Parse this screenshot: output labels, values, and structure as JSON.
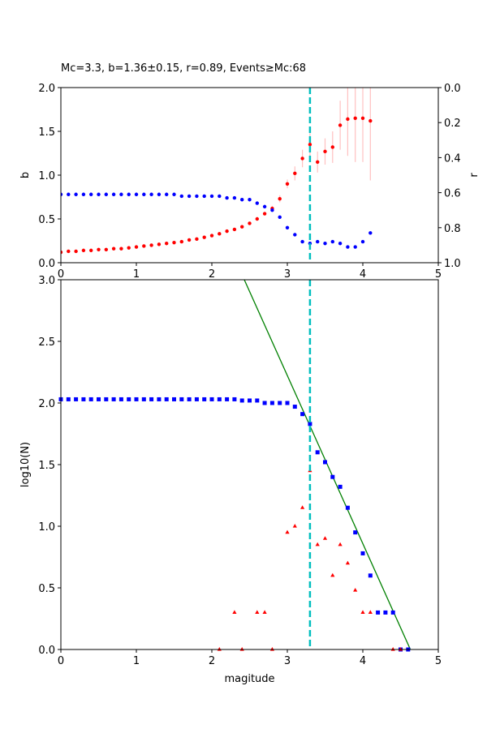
{
  "chart_data": [
    {
      "type": "scatter",
      "title": "Mc=3.3, b=1.36±0.15, r=0.89, Events≥Mc:68",
      "ylabel": "b",
      "y2label": "r",
      "xlim": [
        0,
        5
      ],
      "xticks": [
        0,
        1,
        2,
        3,
        4,
        5
      ],
      "ylim": [
        0,
        2
      ],
      "yticks": [
        {
          "value": 0,
          "label": "0.0"
        },
        {
          "value": 0.5,
          "label": "0.5"
        },
        {
          "value": 1,
          "label": "1.0"
        },
        {
          "value": 1.5,
          "label": "1.5"
        },
        {
          "value": 2,
          "label": "2.0"
        }
      ],
      "y2lim": [
        1,
        0
      ],
      "y2ticks": [
        {
          "value": 0,
          "label": "0.0"
        },
        {
          "value": 0.2,
          "label": "0.2"
        },
        {
          "value": 0.4,
          "label": "0.4"
        },
        {
          "value": 0.6,
          "label": "0.6"
        },
        {
          "value": 0.8,
          "label": "0.8"
        },
        {
          "value": 1,
          "label": "1.0"
        }
      ],
      "vline": {
        "x": 3.3,
        "color": "#00bfbf"
      },
      "x": [
        0,
        0.1,
        0.2,
        0.3,
        0.4,
        0.5,
        0.6,
        0.7,
        0.8,
        0.9,
        1.0,
        1.1,
        1.2,
        1.3,
        1.4,
        1.5,
        1.6,
        1.7,
        1.8,
        1.9,
        2.0,
        2.1,
        2.2,
        2.3,
        2.4,
        2.5,
        2.6,
        2.7,
        2.8,
        2.9,
        3.0,
        3.1,
        3.2,
        3.3,
        3.4,
        3.5,
        3.6,
        3.7,
        3.8,
        3.9,
        4.0,
        4.1
      ],
      "series": [
        {
          "color": "#ff0000",
          "marker": "circle",
          "error_color": "#ffc0c0",
          "values": [
            0.12,
            0.13,
            0.13,
            0.14,
            0.14,
            0.15,
            0.15,
            0.16,
            0.16,
            0.17,
            0.18,
            0.19,
            0.2,
            0.21,
            0.22,
            0.23,
            0.24,
            0.26,
            0.27,
            0.29,
            0.31,
            0.33,
            0.36,
            0.38,
            0.41,
            0.45,
            0.5,
            0.56,
            0.62,
            0.73,
            0.9,
            1.02,
            1.19,
            1.35,
            1.15,
            1.27,
            1.32,
            1.57,
            1.64,
            1.65,
            1.65,
            1.62
          ],
          "errors": [
            null,
            null,
            null,
            null,
            null,
            null,
            null,
            null,
            null,
            null,
            null,
            null,
            null,
            null,
            null,
            null,
            null,
            null,
            null,
            null,
            null,
            null,
            null,
            null,
            null,
            null,
            null,
            null,
            0.03,
            0.04,
            0.05,
            0.08,
            0.1,
            0.13,
            0.12,
            0.15,
            0.18,
            0.28,
            0.42,
            0.5,
            0.5,
            0.68
          ]
        },
        {
          "color": "#0000ff",
          "marker": "circle",
          "axis": "y2",
          "values": [
            0.61,
            0.61,
            0.61,
            0.61,
            0.61,
            0.61,
            0.61,
            0.61,
            0.61,
            0.61,
            0.61,
            0.61,
            0.61,
            0.61,
            0.61,
            0.61,
            0.62,
            0.62,
            0.62,
            0.62,
            0.62,
            0.62,
            0.63,
            0.63,
            0.64,
            0.64,
            0.66,
            0.68,
            0.7,
            0.74,
            0.8,
            0.84,
            0.88,
            0.89,
            0.88,
            0.89,
            0.88,
            0.89,
            0.91,
            0.91,
            0.88,
            0.83
          ]
        }
      ]
    },
    {
      "type": "scatter",
      "xlabel": "magitude",
      "ylabel": "log10(N)",
      "xlim": [
        0,
        5
      ],
      "xticks": [
        0,
        1,
        2,
        3,
        4,
        5
      ],
      "ylim": [
        0,
        3
      ],
      "yticks": [
        {
          "value": 0,
          "label": "0.0"
        },
        {
          "value": 0.5,
          "label": "0.5"
        },
        {
          "value": 1,
          "label": "1.0"
        },
        {
          "value": 1.5,
          "label": "1.5"
        },
        {
          "value": 2,
          "label": "2.0"
        },
        {
          "value": 2.5,
          "label": "2.5"
        },
        {
          "value": 3,
          "label": "3.0"
        }
      ],
      "vline": {
        "x": 3.3,
        "color": "#00bfbf"
      },
      "series": [
        {
          "color": "#0000ff",
          "marker": "square",
          "x": [
            0,
            0.1,
            0.2,
            0.3,
            0.4,
            0.5,
            0.6,
            0.7,
            0.8,
            0.9,
            1.0,
            1.1,
            1.2,
            1.3,
            1.4,
            1.5,
            1.6,
            1.7,
            1.8,
            1.9,
            2.0,
            2.1,
            2.2,
            2.3,
            2.4,
            2.5,
            2.6,
            2.7,
            2.8,
            2.9,
            3.0,
            3.1,
            3.2,
            3.3,
            3.4,
            3.5,
            3.6,
            3.7,
            3.8,
            3.9,
            4.0,
            4.1,
            4.2,
            4.3,
            4.4,
            4.5,
            4.6
          ],
          "values": [
            2.03,
            2.03,
            2.03,
            2.03,
            2.03,
            2.03,
            2.03,
            2.03,
            2.03,
            2.03,
            2.03,
            2.03,
            2.03,
            2.03,
            2.03,
            2.03,
            2.03,
            2.03,
            2.03,
            2.03,
            2.03,
            2.03,
            2.03,
            2.03,
            2.02,
            2.02,
            2.02,
            2.0,
            2.0,
            2.0,
            2.0,
            1.97,
            1.91,
            1.83,
            1.6,
            1.52,
            1.4,
            1.32,
            1.15,
            0.95,
            0.78,
            0.6,
            0.3,
            0.3,
            0.3,
            0,
            0
          ]
        },
        {
          "color": "#ff0000",
          "marker": "triangle",
          "x": [
            2.1,
            2.3,
            2.4,
            2.6,
            2.7,
            2.8,
            3.0,
            3.1,
            3.2,
            3.3,
            3.4,
            3.5,
            3.6,
            3.7,
            3.8,
            3.9,
            4.0,
            4.1,
            4.4,
            4.5
          ],
          "values": [
            0,
            0.3,
            0,
            0.3,
            0.3,
            0,
            0.95,
            1.0,
            1.15,
            1.45,
            0.85,
            0.9,
            0.6,
            0.85,
            0.7,
            0.48,
            0.3,
            0.3,
            0,
            0
          ]
        },
        {
          "color": "#008000",
          "marker": "line",
          "x": [
            2.43,
            4.63
          ],
          "values": [
            3,
            0
          ]
        }
      ]
    }
  ]
}
